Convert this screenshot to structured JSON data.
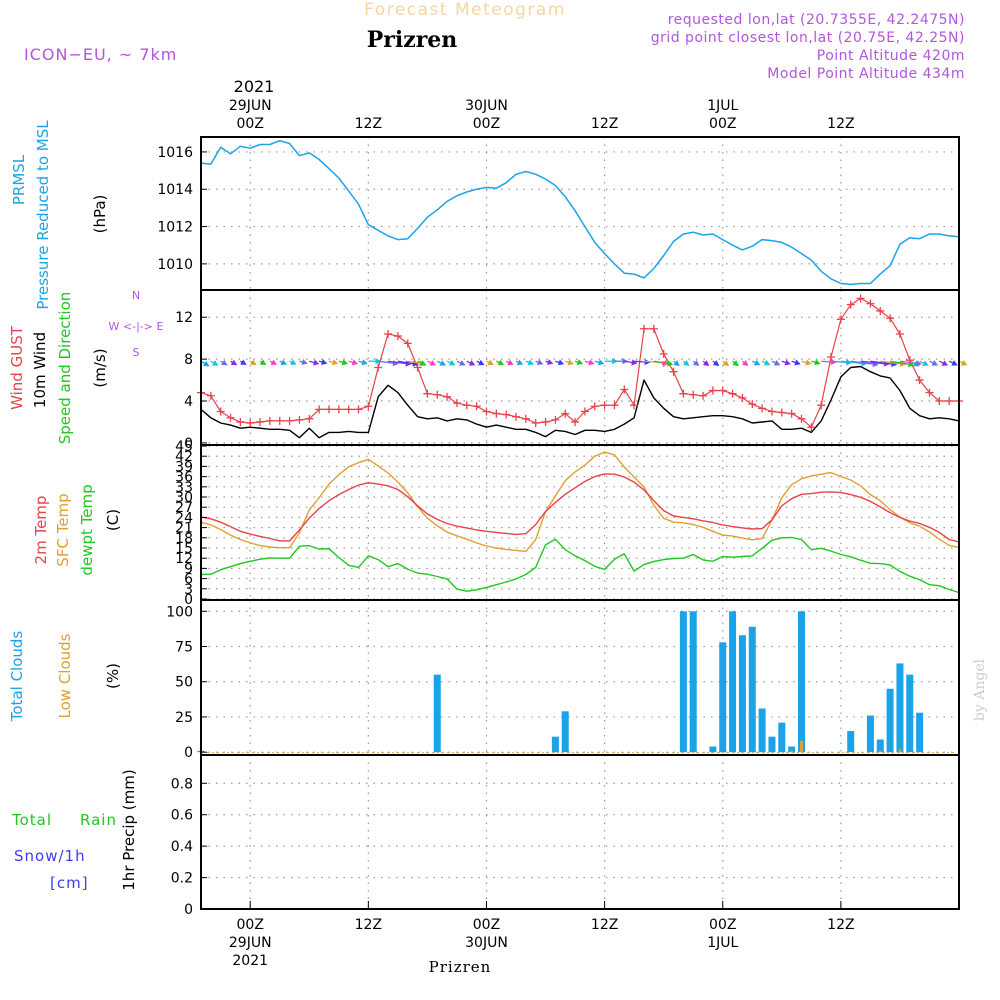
{
  "header": {
    "supertitle": "Forecast Meteogram",
    "location": "Prizren",
    "model": "ICON−EU, ~ 7km",
    "requested": "requested lon,lat (20.7355E, 42.2475N)",
    "closest": "grid point closest lon,lat (20.75E, 42.25N)",
    "point_alt": "Point Altitude 420m",
    "model_alt": "Model Point Altitude 434m",
    "footer_location": "Prizren",
    "credit": "by Angel"
  },
  "colors": {
    "pressure": "#1aa3e8",
    "gust": "#e8424a",
    "wind": "#000000",
    "dir_label": "#1ec81e",
    "temp2m": "#e8424a",
    "sfc": "#e0a030",
    "dewpt": "#1ec81e",
    "total_clouds": "#1aa3e8",
    "low_clouds": "#e0a030",
    "rain": "#1ec81e",
    "snow": "#3c3cf0",
    "purple": "#b455e0",
    "grid": "#999999"
  },
  "time_axis": {
    "top_year": "2021",
    "ticks": [
      {
        "h": 0,
        "top": [
          "29JUN",
          "00Z"
        ],
        "bottom": [
          "00Z",
          "29JUN",
          "2021"
        ]
      },
      {
        "h": 12,
        "top": [
          "12Z"
        ],
        "bottom": [
          "12Z"
        ]
      },
      {
        "h": 24,
        "top": [
          "30JUN",
          "00Z"
        ],
        "bottom": [
          "00Z",
          "30JUN"
        ]
      },
      {
        "h": 36,
        "top": [
          "12Z"
        ],
        "bottom": [
          "12Z"
        ]
      },
      {
        "h": 48,
        "top": [
          "1JUL",
          "00Z"
        ],
        "bottom": [
          "00Z",
          "1JUL"
        ]
      },
      {
        "h": 60,
        "top": [
          "12Z"
        ],
        "bottom": [
          "12Z"
        ]
      }
    ]
  },
  "panels": {
    "pressure": {
      "labels": [
        "PRMSL",
        "Pressure Reduced to MSL",
        "(hPa)"
      ],
      "ylim": [
        1008.6,
        1016.8
      ],
      "yticks": [
        1010,
        1012,
        1014,
        1016
      ]
    },
    "wind": {
      "labels": [
        "Wind GUST",
        "10m Wind",
        "Speed and Direction",
        "(m/s)"
      ],
      "compass": [
        "N",
        "W <-|-> E",
        "S"
      ],
      "ylim": [
        -0.2,
        14.6
      ],
      "yticks": [
        0,
        4,
        8,
        12
      ]
    },
    "temp": {
      "labels": [
        "2m Temp",
        "SFC Temp",
        "dewpt Temp",
        "(C)"
      ],
      "ylim": [
        -0.3,
        45.3
      ],
      "yticks": [
        0,
        3,
        6,
        9,
        12,
        15,
        18,
        21,
        24,
        27,
        30,
        33,
        36,
        39,
        42,
        45
      ]
    },
    "clouds": {
      "labels": [
        "Total Clouds",
        "Low Clouds",
        "(%)"
      ],
      "ylim": [
        -2,
        108
      ],
      "yticks": [
        0,
        25,
        50,
        75,
        100
      ]
    },
    "precip": {
      "labels": [
        "Total",
        "Rain",
        "Snow/1h",
        "[cm]",
        "1hr Precip (mm)"
      ],
      "ylim": [
        0,
        0.98
      ],
      "yticks": [
        "0",
        "0.2",
        "0.4",
        "0.6",
        "0.8"
      ]
    }
  },
  "chart_data": {
    "type": "line",
    "x_unit": "hours since 29JUN 00Z",
    "x_range": [
      -5,
      72
    ],
    "pressure": {
      "name": "PRMSL",
      "x": [
        -5,
        -4,
        -3,
        -2,
        -1,
        0,
        1,
        2,
        3,
        4,
        5,
        6,
        7,
        8,
        9,
        10,
        11,
        12,
        13,
        14,
        15,
        16,
        17,
        18,
        19,
        20,
        21,
        22,
        23,
        24,
        25,
        26,
        27,
        28,
        29,
        30,
        31,
        32,
        33,
        34,
        35,
        36,
        37,
        38,
        39,
        40,
        41,
        42,
        43,
        44,
        45,
        46,
        47,
        48,
        49,
        50,
        51,
        52,
        53,
        54,
        55,
        56,
        57,
        58,
        59,
        60,
        61,
        62,
        63,
        64,
        65,
        66,
        67,
        68,
        69,
        70,
        71,
        72
      ],
      "values": [
        1015.4,
        1015.35,
        1016.25,
        1015.9,
        1016.3,
        1016.2,
        1016.4,
        1016.4,
        1016.6,
        1016.45,
        1015.8,
        1015.95,
        1015.6,
        1015.1,
        1014.6,
        1013.9,
        1013.2,
        1012.1,
        1011.8,
        1011.5,
        1011.3,
        1011.35,
        1011.9,
        1012.5,
        1012.9,
        1013.35,
        1013.65,
        1013.85,
        1014.0,
        1014.1,
        1014.05,
        1014.35,
        1014.8,
        1014.95,
        1014.8,
        1014.55,
        1014.2,
        1013.6,
        1012.85,
        1012.0,
        1011.15,
        1010.55,
        1010.0,
        1009.5,
        1009.45,
        1009.25,
        1009.75,
        1010.45,
        1011.2,
        1011.6,
        1011.7,
        1011.55,
        1011.6,
        1011.3,
        1011.0,
        1010.75,
        1010.95,
        1011.3,
        1011.25,
        1011.15,
        1010.9,
        1010.55,
        1010.2,
        1009.6,
        1009.2,
        1008.95,
        1008.9,
        1008.95,
        1008.95,
        1009.45,
        1009.9,
        1011.05,
        1011.4,
        1011.35,
        1011.6,
        1011.6,
        1011.5,
        1011.45
      ]
    },
    "gust": {
      "name": "Wind GUST",
      "x": [
        -5,
        -4,
        -3,
        -2,
        -1,
        0,
        1,
        2,
        3,
        4,
        5,
        6,
        7,
        8,
        9,
        10,
        11,
        12,
        13,
        14,
        15,
        16,
        17,
        18,
        19,
        20,
        21,
        22,
        23,
        24,
        25,
        26,
        27,
        28,
        29,
        30,
        31,
        32,
        33,
        34,
        35,
        36,
        37,
        38,
        39,
        40,
        41,
        42,
        43,
        44,
        45,
        46,
        47,
        48,
        49,
        50,
        51,
        52,
        53,
        54,
        55,
        56,
        57,
        58,
        59,
        60,
        61,
        62,
        63,
        64,
        65,
        66,
        67,
        68,
        69,
        70,
        71,
        72
      ],
      "values": [
        4.8,
        4.5,
        3.0,
        2.4,
        2.0,
        1.9,
        2.0,
        2.1,
        2.1,
        2.1,
        2.2,
        2.3,
        3.2,
        3.2,
        3.2,
        3.2,
        3.2,
        3.5,
        7.2,
        10.4,
        10.2,
        9.5,
        7.2,
        4.7,
        4.6,
        4.4,
        3.8,
        3.6,
        3.5,
        3.0,
        2.8,
        2.7,
        2.5,
        2.3,
        1.9,
        2.0,
        2.2,
        2.8,
        2.0,
        3.0,
        3.5,
        3.6,
        3.6,
        5.1,
        3.6,
        10.9,
        10.9,
        8.5,
        6.8,
        4.7,
        4.6,
        4.5,
        5.0,
        5.0,
        4.7,
        4.3,
        3.7,
        3.3,
        3.0,
        2.9,
        2.8,
        2.3,
        1.5,
        3.6,
        8.2,
        11.8,
        13.2,
        13.8,
        13.3,
        12.6,
        11.9,
        10.4,
        7.9,
        6.0,
        4.8,
        4.0,
        4.0,
        4.0
      ]
    },
    "wind": {
      "name": "10m Wind",
      "x": [
        -5,
        -4,
        -3,
        -2,
        -1,
        0,
        1,
        2,
        3,
        4,
        5,
        6,
        7,
        8,
        9,
        10,
        11,
        12,
        13,
        14,
        15,
        16,
        17,
        18,
        19,
        20,
        21,
        22,
        23,
        24,
        25,
        26,
        27,
        28,
        29,
        30,
        31,
        32,
        33,
        34,
        35,
        36,
        37,
        38,
        39,
        40,
        41,
        42,
        43,
        44,
        45,
        46,
        47,
        48,
        49,
        50,
        51,
        52,
        53,
        54,
        55,
        56,
        57,
        58,
        59,
        60,
        61,
        62,
        63,
        64,
        65,
        66,
        67,
        68,
        69,
        70,
        71,
        72
      ],
      "values": [
        3.2,
        2.4,
        1.9,
        1.7,
        1.4,
        1.5,
        1.4,
        1.3,
        1.3,
        1.2,
        0.5,
        1.4,
        0.5,
        1.0,
        1.0,
        1.1,
        1.0,
        1.0,
        4.4,
        5.5,
        4.8,
        3.6,
        2.5,
        2.3,
        2.4,
        2.1,
        2.3,
        2.2,
        1.8,
        1.5,
        1.7,
        1.5,
        1.3,
        1.3,
        1.0,
        0.6,
        1.2,
        1.1,
        0.8,
        1.2,
        1.2,
        1.1,
        1.3,
        1.8,
        2.4,
        6.0,
        4.3,
        3.3,
        2.5,
        2.3,
        2.4,
        2.5,
        2.6,
        2.6,
        2.5,
        2.3,
        1.9,
        2.0,
        2.1,
        1.3,
        1.3,
        1.4,
        1.0,
        2.1,
        4.1,
        6.3,
        7.2,
        7.3,
        6.8,
        6.4,
        6.2,
        5.0,
        3.3,
        2.6,
        2.3,
        2.4,
        2.3,
        2.1
      ]
    },
    "wind_direction": {
      "name": "Speed and Direction",
      "x": [
        -5,
        -4,
        -3,
        -2,
        -1,
        0,
        1,
        2,
        3,
        4,
        5,
        6,
        7,
        8,
        9,
        10,
        11,
        12,
        13,
        14,
        15,
        16,
        17,
        18,
        19,
        20,
        21,
        22,
        23,
        24,
        25,
        26,
        27,
        28,
        29,
        30,
        31,
        32,
        33,
        34,
        35,
        36,
        37,
        38,
        39,
        40,
        41,
        42,
        43,
        44,
        45,
        46,
        47,
        48,
        49,
        50,
        51,
        52,
        53,
        54,
        55,
        56,
        57,
        58,
        59,
        60,
        61,
        62,
        63,
        64,
        65,
        66,
        67,
        68,
        69,
        70,
        71,
        72
      ],
      "values": [
        155,
        155,
        155,
        155,
        155,
        155,
        155,
        150,
        150,
        150,
        135,
        135,
        135,
        135,
        135,
        135,
        135,
        90,
        65,
        65,
        60,
        60,
        150,
        150,
        150,
        150,
        150,
        150,
        150,
        150,
        150,
        150,
        150,
        145,
        145,
        140,
        140,
        140,
        140,
        135,
        135,
        90,
        90,
        120,
        75,
        75,
        60,
        180,
        160,
        160,
        160,
        160,
        160,
        160,
        160,
        160,
        150,
        150,
        150,
        140,
        140,
        135,
        135,
        75,
        75,
        70,
        65,
        70,
        65,
        65,
        60,
        65,
        150,
        150,
        150,
        150,
        150,
        150
      ]
    },
    "temp2m": {
      "name": "2m Temp",
      "x": [
        -5,
        -4,
        -3,
        -2,
        -1,
        0,
        1,
        2,
        3,
        4,
        5,
        6,
        7,
        8,
        9,
        10,
        11,
        12,
        13,
        14,
        15,
        16,
        17,
        18,
        19,
        20,
        21,
        22,
        23,
        24,
        25,
        26,
        27,
        28,
        29,
        30,
        31,
        32,
        33,
        34,
        35,
        36,
        37,
        38,
        39,
        40,
        41,
        42,
        43,
        44,
        45,
        46,
        47,
        48,
        49,
        50,
        51,
        52,
        53,
        54,
        55,
        56,
        57,
        58,
        59,
        60,
        61,
        62,
        63,
        64,
        65,
        66,
        67,
        68,
        69,
        70,
        71,
        72
      ],
      "values": [
        24.1,
        23.6,
        22.6,
        21.3,
        19.9,
        19.1,
        18.4,
        17.8,
        17.1,
        17.1,
        20.3,
        23.8,
        26.6,
        28.9,
        30.7,
        32.2,
        33.5,
        34.2,
        33.8,
        33.3,
        32.2,
        30.1,
        27.4,
        25.0,
        23.4,
        22.2,
        21.4,
        20.9,
        20.3,
        19.9,
        19.6,
        19.3,
        19.0,
        19.2,
        21.9,
        25.7,
        28.4,
        30.8,
        32.7,
        34.6,
        36.0,
        36.8,
        36.7,
        35.9,
        34.4,
        32.1,
        28.9,
        26.0,
        24.4,
        24.0,
        23.6,
        23.0,
        22.5,
        21.8,
        21.3,
        20.9,
        20.6,
        20.7,
        23.3,
        27.4,
        29.5,
        30.8,
        31.0,
        31.4,
        31.5,
        31.3,
        30.7,
        29.9,
        28.7,
        27.1,
        25.4,
        24.0,
        22.9,
        22.2,
        21.1,
        19.6,
        17.5,
        16.8
      ]
    },
    "sfc_temp": {
      "name": "SFC Temp",
      "x": [
        -5,
        -4,
        -3,
        -2,
        -1,
        0,
        1,
        2,
        3,
        4,
        5,
        6,
        7,
        8,
        9,
        10,
        11,
        12,
        13,
        14,
        15,
        16,
        17,
        18,
        19,
        20,
        21,
        22,
        23,
        24,
        25,
        26,
        27,
        28,
        29,
        30,
        31,
        32,
        33,
        34,
        35,
        36,
        37,
        38,
        39,
        40,
        41,
        42,
        43,
        44,
        45,
        46,
        47,
        48,
        49,
        50,
        51,
        52,
        53,
        54,
        55,
        56,
        57,
        58,
        59,
        60,
        61,
        62,
        63,
        64,
        65,
        66,
        67,
        68,
        69,
        70,
        71,
        72
      ],
      "values": [
        22.6,
        21.8,
        20.4,
        18.8,
        17.5,
        16.5,
        15.7,
        15.3,
        15.1,
        15.1,
        19.5,
        26.2,
        29.8,
        33.8,
        36.6,
        38.9,
        40.1,
        41.1,
        39.1,
        37.1,
        34.4,
        31.2,
        27.1,
        23.8,
        21.5,
        19.7,
        18.6,
        17.6,
        16.5,
        15.6,
        15.0,
        14.6,
        14.3,
        14.0,
        17.5,
        25.7,
        30.3,
        34.8,
        37.4,
        39.4,
        42.0,
        43.2,
        42.4,
        38.8,
        35.9,
        32.9,
        27.6,
        23.7,
        22.6,
        22.4,
        21.9,
        21.1,
        19.9,
        18.8,
        18.5,
        17.9,
        17.4,
        17.8,
        23.2,
        29.8,
        33.6,
        35.4,
        36.2,
        36.7,
        37.2,
        36.0,
        35.0,
        33.3,
        30.7,
        28.9,
        26.3,
        24.1,
        22.4,
        21.4,
        19.7,
        17.6,
        15.8,
        15.1
      ]
    },
    "dewpt": {
      "name": "dewpt Temp",
      "x": [
        -5,
        -4,
        -3,
        -2,
        -1,
        0,
        1,
        2,
        3,
        4,
        5,
        6,
        7,
        8,
        9,
        10,
        11,
        12,
        13,
        14,
        15,
        16,
        17,
        18,
        19,
        20,
        21,
        22,
        23,
        24,
        25,
        26,
        27,
        28,
        29,
        30,
        31,
        32,
        33,
        34,
        35,
        36,
        37,
        38,
        39,
        40,
        41,
        42,
        43,
        44,
        45,
        46,
        47,
        48,
        49,
        50,
        51,
        52,
        53,
        54,
        55,
        56,
        57,
        58,
        59,
        60,
        61,
        62,
        63,
        64,
        65,
        66,
        67,
        68,
        69,
        70,
        71,
        72
      ],
      "values": [
        7.2,
        7.3,
        8.6,
        9.5,
        10.4,
        11.1,
        11.7,
        12.1,
        12.0,
        12.0,
        15.5,
        15.7,
        14.7,
        14.8,
        12.2,
        9.9,
        9.3,
        12.7,
        11.6,
        9.5,
        10.4,
        8.8,
        7.6,
        7.3,
        6.6,
        5.9,
        2.9,
        2.3,
        2.7,
        3.4,
        4.2,
        5.0,
        5.9,
        7.2,
        9.3,
        15.9,
        17.6,
        14.5,
        12.7,
        11.3,
        9.6,
        8.7,
        11.7,
        13.3,
        8.2,
        10.1,
        11.0,
        11.6,
        11.9,
        12.0,
        13.1,
        11.5,
        11.1,
        12.5,
        12.3,
        12.5,
        12.7,
        14.9,
        17.3,
        18.0,
        18.1,
        17.5,
        14.5,
        14.9,
        14.1,
        13.1,
        12.4,
        11.4,
        10.5,
        10.4,
        10.0,
        8.1,
        6.7,
        5.7,
        4.2,
        3.9,
        2.8,
        1.9
      ]
    },
    "total_clouds": {
      "name": "Total Clouds",
      "x": [
        -5,
        19,
        31,
        32,
        44,
        45,
        47,
        48,
        49,
        50,
        51,
        52,
        53,
        54,
        55,
        56,
        57,
        61,
        63,
        64,
        65,
        66,
        67,
        68,
        69,
        70
      ],
      "values": [
        1,
        55,
        11,
        29,
        100,
        100,
        4,
        78,
        100,
        83,
        89,
        31,
        11,
        21,
        4,
        100,
        0,
        15,
        26,
        9,
        45,
        63,
        55,
        28,
        0,
        0
      ]
    },
    "low_clouds": {
      "name": "Low Clouds",
      "x": [
        55,
        56,
        64,
        66
      ],
      "values": [
        1,
        8,
        1,
        2
      ]
    },
    "precip": {
      "name": "1hr Precip (mm)",
      "rain": [],
      "snow": []
    }
  }
}
